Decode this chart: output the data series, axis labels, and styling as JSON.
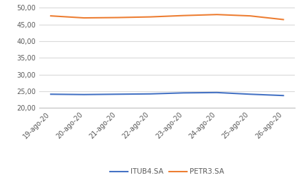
{
  "x_labels": [
    "19-ago-20",
    "20-ago-20",
    "21-ago-20",
    "22-ago-20",
    "23-ago-20",
    "24-ago-20",
    "25-ago-20",
    "26-ago-20"
  ],
  "itub4": [
    24.1,
    24.0,
    24.1,
    24.2,
    24.5,
    24.6,
    24.1,
    23.7
  ],
  "petr3": [
    47.6,
    47.0,
    47.1,
    47.3,
    47.7,
    48.0,
    47.6,
    46.5
  ],
  "itub4_color": "#4472C4",
  "petr3_color": "#ED7D31",
  "itub4_label": "ITUB4.SA",
  "petr3_label": "PETR3.SA",
  "ylim_min": 20.0,
  "ylim_max": 51.25,
  "yticks": [
    20.0,
    25.0,
    30.0,
    35.0,
    40.0,
    45.0,
    50.0
  ],
  "background_color": "#ffffff",
  "grid_color": "#d9d9d9",
  "line_width": 1.5,
  "tick_fontsize": 7.0,
  "legend_fontsize": 7.5
}
